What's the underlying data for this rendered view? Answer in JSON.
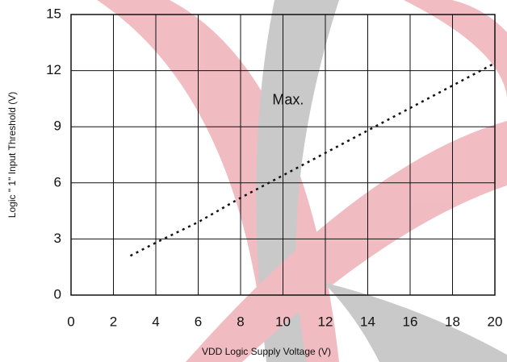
{
  "chart_data": {
    "type": "line",
    "annotation": "Max.",
    "xlabel": "VDD Logic Supply Voltage (V)",
    "ylabel": "Logic \" 1\" Input Threshold (V)",
    "x": [
      2.8,
      4,
      6,
      8,
      10,
      12,
      14,
      16,
      18,
      20
    ],
    "series": [
      {
        "name": "Max.",
        "color": "#111111",
        "values": [
          2.1,
          2.8,
          3.9,
          5.2,
          6.4,
          7.6,
          8.8,
          10,
          11.2,
          12.4
        ]
      }
    ],
    "xlim": [
      0,
      20
    ],
    "xticks": [
      0,
      2,
      4,
      6,
      8,
      10,
      12,
      14,
      16,
      18,
      20
    ],
    "ylim": [
      0,
      15
    ],
    "yticks": [
      0,
      3,
      6,
      9,
      12,
      15
    ],
    "grid": true
  }
}
